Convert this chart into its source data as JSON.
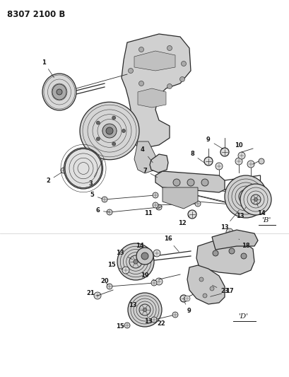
{
  "title": "8307 2100 B",
  "background_color": "#ffffff",
  "line_color": "#2a2a2a",
  "text_color": "#1a1a1a",
  "fig_width": 4.1,
  "fig_height": 5.33,
  "dpi": 100,
  "label_B": "'B'",
  "label_D": "'D'",
  "label_fs": 6.0,
  "title_fs": 8.5
}
